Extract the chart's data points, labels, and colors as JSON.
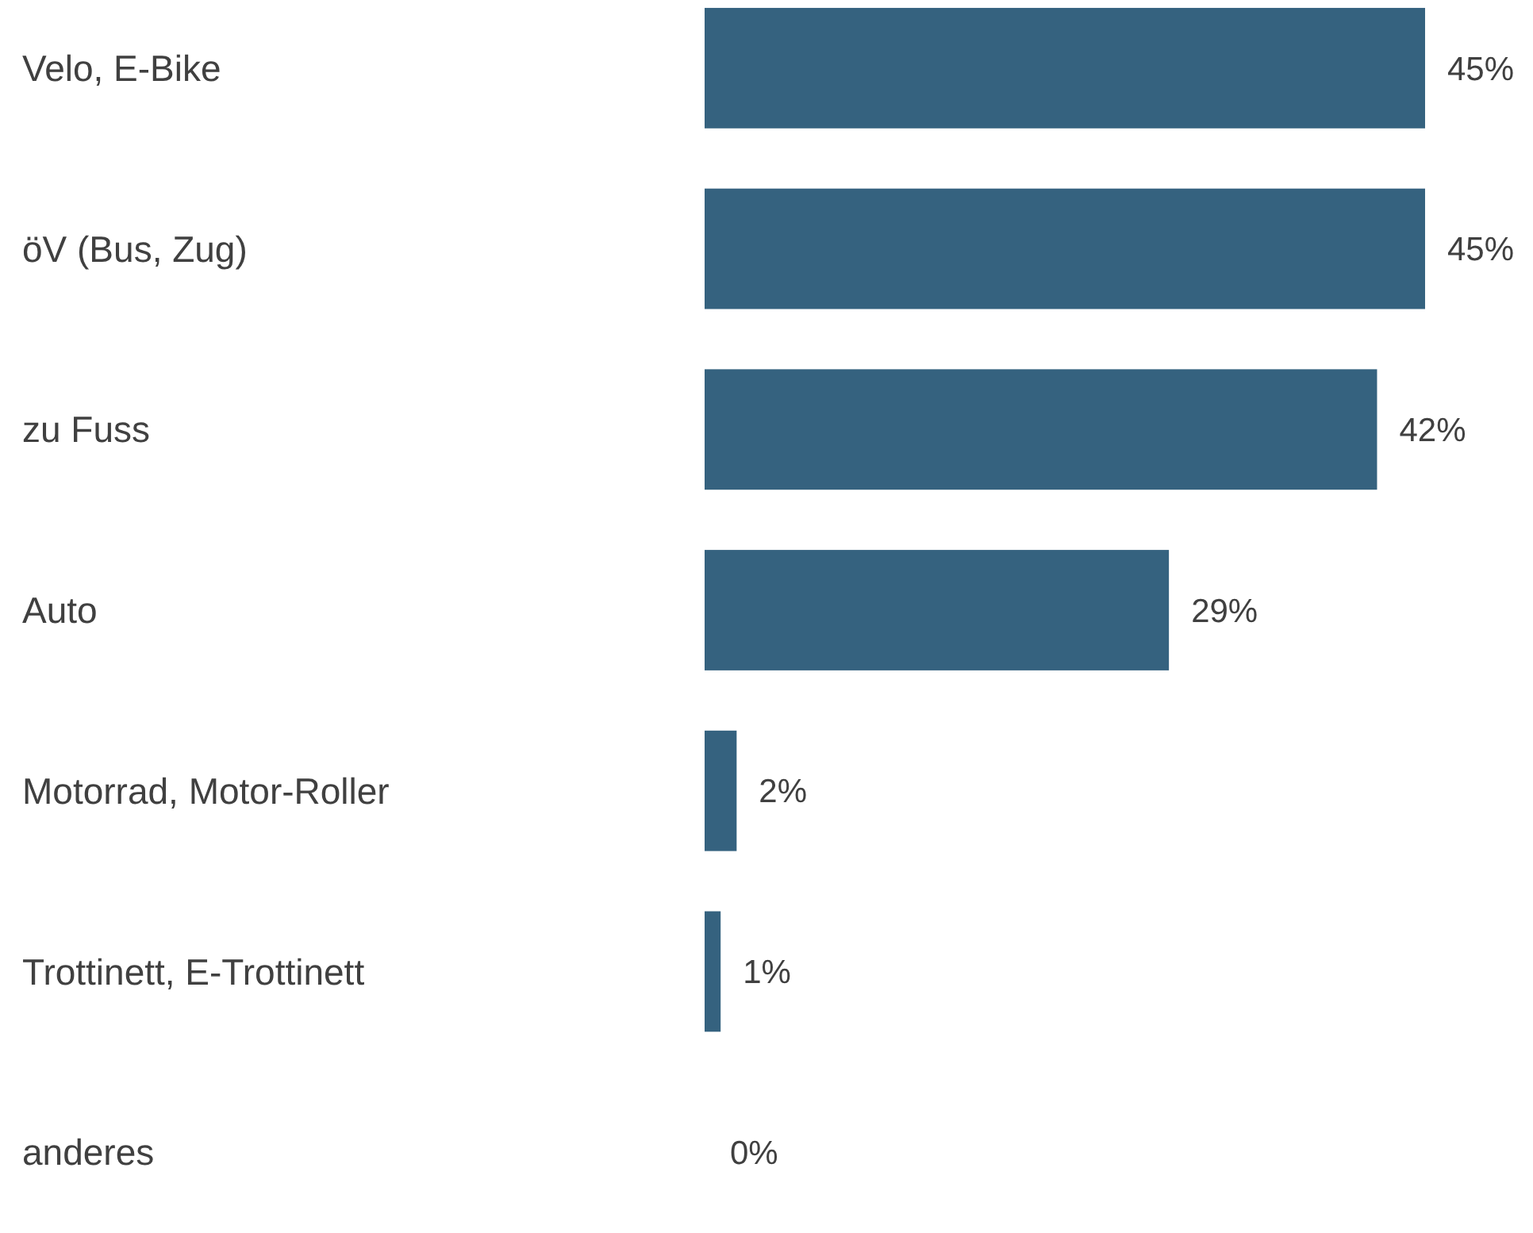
{
  "chart_data": {
    "type": "bar",
    "orientation": "horizontal",
    "categories": [
      "Velo, E-Bike",
      "öV (Bus, Zug)",
      "zu Fuss",
      "Auto",
      "Motorrad, Motor-Roller",
      "Trottinett, E-Trottinett",
      "anderes"
    ],
    "values": [
      45,
      45,
      42,
      29,
      2,
      1,
      0
    ],
    "color": "#35627f",
    "value_labels": [
      "45%",
      "45%",
      "42%",
      "29%",
      "2%",
      "1%",
      "0%"
    ]
  }
}
